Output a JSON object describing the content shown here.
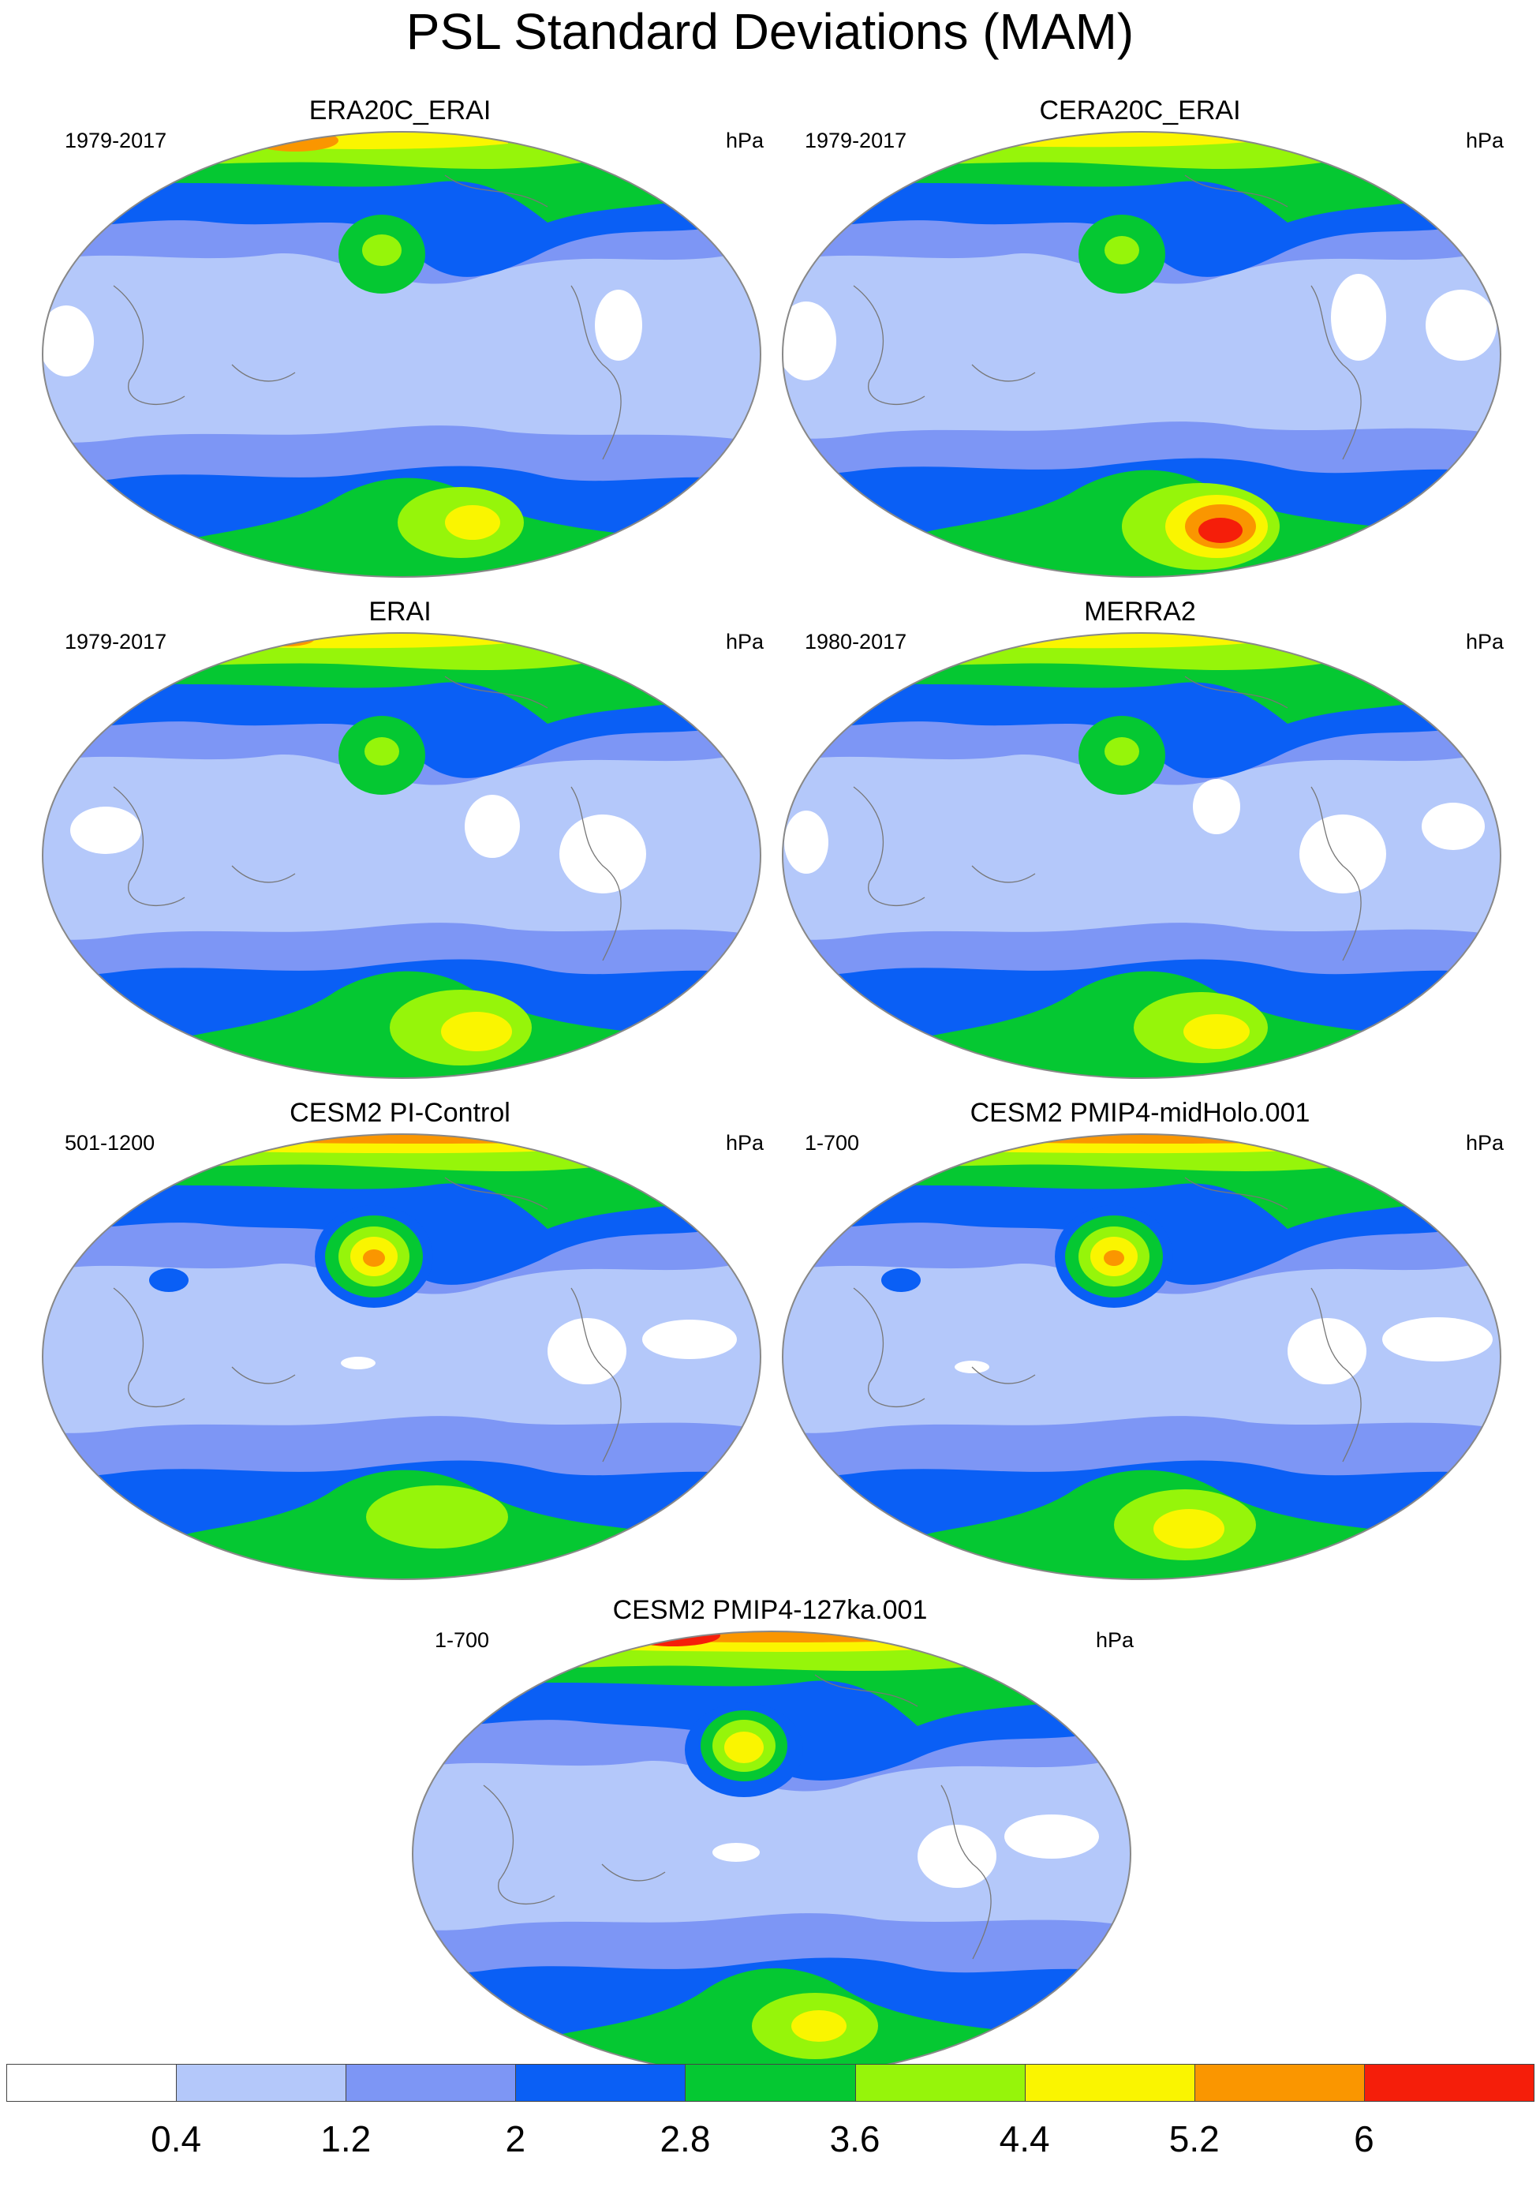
{
  "title": "PSL Standard Deviations (MAM)",
  "panels": [
    {
      "title": "ERA20C_ERAI",
      "range": "1979-2017",
      "unit": "hPa"
    },
    {
      "title": "CERA20C_ERAI",
      "range": "1979-2017",
      "unit": "hPa"
    },
    {
      "title": "ERAI",
      "range": "1979-2017",
      "unit": "hPa"
    },
    {
      "title": "MERRA2",
      "range": "1980-2017",
      "unit": "hPa"
    },
    {
      "title": "CESM2 PI-Control",
      "range": "501-1200",
      "unit": "hPa"
    },
    {
      "title": "CESM2 PMIP4-midHolo.001",
      "range": "1-700",
      "unit": "hPa"
    },
    {
      "title": "CESM2 PMIP4-127ka.001",
      "range": "1-700",
      "unit": "hPa"
    }
  ],
  "colorbar": {
    "labels": [
      "0.4",
      "1.2",
      "2",
      "2.8",
      "3.6",
      "4.4",
      "5.2",
      "6"
    ],
    "colors": [
      "#ffffff",
      "#b4c8fa",
      "#7d96f5",
      "#0a5ff5",
      "#05c832",
      "#96f50a",
      "#faf500",
      "#fa9600",
      "#f51e0a"
    ]
  }
}
